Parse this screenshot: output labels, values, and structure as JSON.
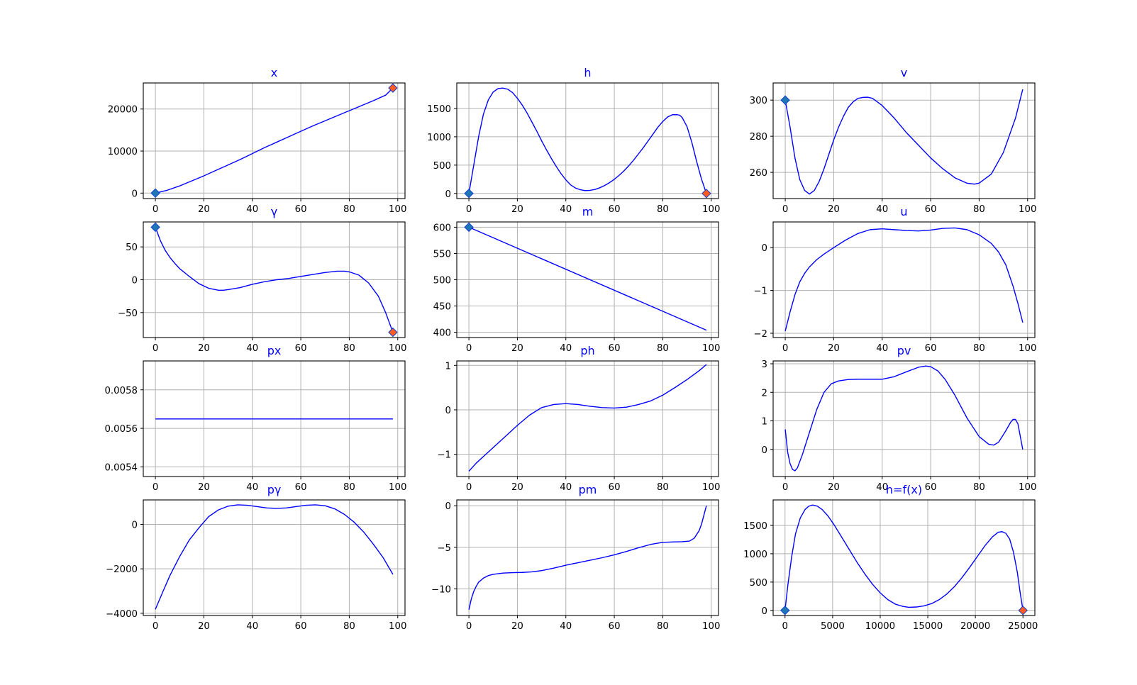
{
  "colors": {
    "line": "#0000ff",
    "title": "#0000ff",
    "grid": "#b0b0b0",
    "start_marker": "#1f77b4",
    "end_marker": "#ff5a1f",
    "marker_edge": "#0b3bd6"
  },
  "chart_data": [
    {
      "type": "line",
      "title": "x",
      "grid": true,
      "xlim": [
        -5,
        103
      ],
      "ylim": [
        -1300,
        26200
      ],
      "xticks": [
        0,
        20,
        40,
        60,
        80,
        100
      ],
      "xtick_labels": [
        "0",
        "20",
        "40",
        "60",
        "80",
        "100"
      ],
      "yticks": [
        0,
        10000,
        20000
      ],
      "ytick_labels": [
        "0",
        "10000",
        "20000"
      ],
      "x": [
        0,
        5,
        10,
        15,
        20,
        25,
        30,
        35,
        40,
        45,
        50,
        55,
        60,
        65,
        70,
        75,
        80,
        85,
        90,
        95,
        98
      ],
      "values": [
        0,
        700,
        1700,
        2900,
        4100,
        5400,
        6700,
        8000,
        9400,
        10800,
        12100,
        13400,
        14700,
        16000,
        17200,
        18400,
        19600,
        20800,
        22000,
        23300,
        25000
      ],
      "markers": [
        {
          "x": 0,
          "y": 0,
          "kind": "start"
        },
        {
          "x": 98,
          "y": 25000,
          "kind": "end"
        }
      ]
    },
    {
      "type": "line",
      "title": "h",
      "grid": true,
      "xlim": [
        -5,
        103
      ],
      "ylim": [
        -90,
        1950
      ],
      "xticks": [
        0,
        20,
        40,
        60,
        80,
        100
      ],
      "xtick_labels": [
        "0",
        "20",
        "40",
        "60",
        "80",
        "100"
      ],
      "yticks": [
        0,
        500,
        1000,
        1500
      ],
      "ytick_labels": [
        "0",
        "500",
        "1000",
        "1500"
      ],
      "x": [
        0,
        2,
        4,
        6,
        8,
        10,
        12,
        14,
        16,
        18,
        20,
        22,
        24,
        26,
        28,
        30,
        32,
        34,
        36,
        38,
        40,
        42,
        44,
        46,
        48,
        50,
        52,
        54,
        56,
        58,
        60,
        62,
        64,
        66,
        68,
        70,
        72,
        74,
        76,
        78,
        80,
        82,
        84,
        86,
        87,
        88,
        90,
        92,
        94,
        96,
        98
      ],
      "values": [
        0,
        500,
        1000,
        1400,
        1650,
        1790,
        1850,
        1860,
        1840,
        1780,
        1680,
        1560,
        1420,
        1260,
        1100,
        930,
        770,
        620,
        480,
        350,
        240,
        150,
        95,
        65,
        50,
        55,
        70,
        100,
        140,
        190,
        250,
        320,
        400,
        490,
        590,
        700,
        810,
        930,
        1050,
        1170,
        1270,
        1350,
        1390,
        1390,
        1380,
        1340,
        1180,
        900,
        560,
        250,
        0
      ],
      "markers": [
        {
          "x": 0,
          "y": 0,
          "kind": "start"
        },
        {
          "x": 98,
          "y": 0,
          "kind": "end"
        }
      ]
    },
    {
      "type": "line",
      "title": "v",
      "grid": true,
      "xlim": [
        -5,
        103
      ],
      "ylim": [
        245.5,
        309.5
      ],
      "xticks": [
        0,
        20,
        40,
        60,
        80,
        100
      ],
      "xtick_labels": [
        "0",
        "20",
        "40",
        "60",
        "80",
        "100"
      ],
      "yticks": [
        260,
        280,
        300
      ],
      "ytick_labels": [
        "260",
        "280",
        "300"
      ],
      "x": [
        0,
        2,
        4,
        6,
        8,
        10,
        12,
        14,
        16,
        18,
        20,
        22,
        24,
        26,
        28,
        30,
        32,
        34,
        36,
        38,
        40,
        45,
        50,
        55,
        60,
        65,
        70,
        75,
        78,
        80,
        85,
        90,
        95,
        98
      ],
      "values": [
        300,
        285,
        268,
        256,
        250,
        248,
        250,
        255,
        262,
        270,
        278,
        285,
        291,
        296,
        299,
        301,
        301.5,
        301.6,
        301,
        299,
        297,
        290,
        282,
        275,
        268,
        262,
        257,
        254,
        253.5,
        254,
        259,
        271,
        290,
        306
      ],
      "markers": [
        {
          "x": 0,
          "y": 300,
          "kind": "start"
        }
      ]
    },
    {
      "type": "line",
      "title": "γ",
      "grid": true,
      "xlim": [
        -5,
        103
      ],
      "ylim": [
        -88,
        88
      ],
      "xticks": [
        0,
        20,
        40,
        60,
        80,
        100
      ],
      "xtick_labels": [
        "0",
        "20",
        "40",
        "60",
        "80",
        "100"
      ],
      "yticks": [
        -50,
        0,
        50
      ],
      "ytick_labels": [
        "−50",
        "0",
        "50"
      ],
      "x": [
        0,
        2,
        4,
        6,
        8,
        10,
        14,
        18,
        22,
        26,
        28,
        30,
        35,
        40,
        45,
        50,
        55,
        60,
        65,
        70,
        75,
        78,
        80,
        84,
        88,
        92,
        95,
        98
      ],
      "values": [
        80,
        60,
        45,
        34,
        25,
        17,
        5,
        -6,
        -13,
        -16,
        -16,
        -15,
        -12,
        -7,
        -3,
        0,
        2,
        5,
        8,
        11,
        13,
        13,
        12,
        7,
        -5,
        -25,
        -50,
        -80
      ],
      "markers": [
        {
          "x": 0,
          "y": 80,
          "kind": "start"
        },
        {
          "x": 98,
          "y": -80,
          "kind": "end"
        }
      ]
    },
    {
      "type": "line",
      "title": "m",
      "grid": true,
      "xlim": [
        -5,
        103
      ],
      "ylim": [
        390,
        610
      ],
      "xticks": [
        0,
        20,
        40,
        60,
        80,
        100
      ],
      "xtick_labels": [
        "0",
        "20",
        "40",
        "60",
        "80",
        "100"
      ],
      "yticks": [
        400,
        450,
        500,
        550,
        600
      ],
      "ytick_labels": [
        "400",
        "450",
        "500",
        "550",
        "600"
      ],
      "x": [
        0,
        98
      ],
      "values": [
        600,
        404
      ],
      "markers": [
        {
          "x": 0,
          "y": 600,
          "kind": "start"
        }
      ]
    },
    {
      "type": "line",
      "title": "u",
      "grid": true,
      "xlim": [
        -5,
        103
      ],
      "ylim": [
        -2.1,
        0.6
      ],
      "xticks": [
        0,
        20,
        40,
        60,
        80,
        100
      ],
      "xtick_labels": [
        "0",
        "20",
        "40",
        "60",
        "80",
        "100"
      ],
      "yticks": [
        -2,
        -1,
        0
      ],
      "ytick_labels": [
        "−2",
        "−1",
        "0"
      ],
      "x": [
        0,
        2,
        4,
        6,
        8,
        10,
        13,
        16,
        20,
        25,
        30,
        35,
        40,
        45,
        50,
        55,
        60,
        65,
        70,
        75,
        80,
        85,
        88,
        91,
        94,
        96,
        98
      ],
      "values": [
        -1.95,
        -1.5,
        -1.1,
        -0.8,
        -0.6,
        -0.45,
        -0.28,
        -0.15,
        0,
        0.18,
        0.33,
        0.42,
        0.44,
        0.42,
        0.4,
        0.39,
        0.41,
        0.45,
        0.46,
        0.42,
        0.3,
        0.1,
        -0.1,
        -0.4,
        -0.9,
        -1.3,
        -1.75
      ],
      "markers": []
    },
    {
      "type": "line",
      "title": "px",
      "grid": true,
      "xlim": [
        -5,
        103
      ],
      "ylim": [
        0.00535,
        0.00595
      ],
      "xticks": [
        0,
        20,
        40,
        60,
        80,
        100
      ],
      "xtick_labels": [
        "0",
        "20",
        "40",
        "60",
        "80",
        "100"
      ],
      "yticks": [
        0.0054,
        0.0056,
        0.0058
      ],
      "ytick_labels": [
        "0.0054",
        "0.0056",
        "0.0058"
      ],
      "x": [
        0,
        98
      ],
      "values": [
        0.005649,
        0.005649
      ],
      "markers": []
    },
    {
      "type": "line",
      "title": "ph",
      "grid": true,
      "xlim": [
        -5,
        103
      ],
      "ylim": [
        -1.5,
        1.1
      ],
      "xticks": [
        0,
        20,
        40,
        60,
        80,
        100
      ],
      "xtick_labels": [
        "0",
        "20",
        "40",
        "60",
        "80",
        "100"
      ],
      "yticks": [
        -1,
        0,
        1
      ],
      "ytick_labels": [
        "−1",
        "0",
        "1"
      ],
      "x": [
        0,
        3,
        6,
        10,
        15,
        20,
        25,
        30,
        35,
        40,
        45,
        50,
        55,
        60,
        65,
        70,
        75,
        80,
        85,
        90,
        95,
        98
      ],
      "values": [
        -1.38,
        -1.2,
        -1.05,
        -0.85,
        -0.6,
        -0.35,
        -0.12,
        0.05,
        0.12,
        0.14,
        0.12,
        0.08,
        0.05,
        0.04,
        0.06,
        0.12,
        0.2,
        0.33,
        0.5,
        0.68,
        0.88,
        1.02
      ],
      "markers": []
    },
    {
      "type": "line",
      "title": "pv",
      "grid": true,
      "xlim": [
        -5,
        103
      ],
      "ylim": [
        -0.95,
        3.1
      ],
      "xticks": [
        0,
        20,
        40,
        60,
        80,
        100
      ],
      "xtick_labels": [
        "0",
        "20",
        "40",
        "60",
        "80",
        "100"
      ],
      "yticks": [
        0,
        1,
        2,
        3
      ],
      "ytick_labels": [
        "0",
        "1",
        "2",
        "3"
      ],
      "x": [
        0,
        1,
        2,
        3,
        4,
        5,
        7,
        10,
        13,
        16,
        19,
        22,
        26,
        30,
        35,
        40,
        45,
        50,
        55,
        58,
        60,
        63,
        66,
        70,
        75,
        80,
        84,
        86,
        88,
        91,
        93,
        94,
        95,
        96,
        97,
        98
      ],
      "values": [
        0.7,
        -0.1,
        -0.5,
        -0.7,
        -0.75,
        -0.65,
        -0.2,
        0.6,
        1.4,
        2.0,
        2.3,
        2.4,
        2.45,
        2.46,
        2.46,
        2.46,
        2.55,
        2.72,
        2.88,
        2.92,
        2.9,
        2.75,
        2.45,
        1.9,
        1.1,
        0.45,
        0.18,
        0.15,
        0.25,
        0.65,
        0.95,
        1.05,
        1.05,
        0.9,
        0.45,
        0.0
      ],
      "markers": []
    },
    {
      "type": "line",
      "title": "pγ",
      "grid": true,
      "xlim": [
        -5,
        103
      ],
      "ylim": [
        -4100,
        1100
      ],
      "xticks": [
        0,
        20,
        40,
        60,
        80,
        100
      ],
      "xtick_labels": [
        "0",
        "20",
        "40",
        "60",
        "80",
        "100"
      ],
      "yticks": [
        -4000,
        -2000,
        0
      ],
      "ytick_labels": [
        "−4000",
        "−2000",
        "0"
      ],
      "x": [
        0,
        3,
        6,
        10,
        14,
        18,
        22,
        26,
        30,
        34,
        38,
        42,
        46,
        50,
        54,
        58,
        62,
        66,
        70,
        74,
        78,
        82,
        86,
        90,
        94,
        98
      ],
      "values": [
        -3820,
        -3050,
        -2300,
        -1450,
        -700,
        -150,
        350,
        650,
        820,
        880,
        860,
        800,
        740,
        720,
        740,
        800,
        860,
        880,
        840,
        700,
        450,
        100,
        -350,
        -900,
        -1500,
        -2250
      ],
      "markers": []
    },
    {
      "type": "line",
      "title": "pm",
      "grid": true,
      "xlim": [
        -5,
        103
      ],
      "ylim": [
        -13.2,
        0.7
      ],
      "xticks": [
        0,
        20,
        40,
        60,
        80,
        100
      ],
      "xtick_labels": [
        "0",
        "20",
        "40",
        "60",
        "80",
        "100"
      ],
      "yticks": [
        -10,
        -5,
        0
      ],
      "ytick_labels": [
        "−10",
        "−5",
        "0"
      ],
      "x": [
        0,
        1,
        2,
        3,
        4,
        6,
        8,
        10,
        14,
        18,
        22,
        26,
        30,
        35,
        40,
        45,
        50,
        55,
        60,
        65,
        70,
        75,
        80,
        85,
        88,
        91,
        93,
        95,
        96,
        97,
        98
      ],
      "values": [
        -12.5,
        -11.2,
        -10.3,
        -9.7,
        -9.2,
        -8.7,
        -8.4,
        -8.25,
        -8.1,
        -8.05,
        -8.02,
        -7.95,
        -7.8,
        -7.5,
        -7.15,
        -6.85,
        -6.55,
        -6.25,
        -5.9,
        -5.5,
        -5.05,
        -4.65,
        -4.4,
        -4.35,
        -4.33,
        -4.25,
        -3.9,
        -3.0,
        -2.2,
        -1.1,
        0
      ],
      "markers": []
    },
    {
      "type": "line",
      "title": "h=f(x)",
      "grid": true,
      "xlim": [
        -1250,
        26250
      ],
      "ylim": [
        -90,
        1950
      ],
      "xticks": [
        0,
        5000,
        10000,
        15000,
        20000,
        25000
      ],
      "xtick_labels": [
        "0",
        "5000",
        "10000",
        "15000",
        "20000",
        "25000"
      ],
      "yticks": [
        0,
        500,
        1000,
        1500
      ],
      "ytick_labels": [
        "0",
        "500",
        "1000",
        "1500"
      ],
      "x": [
        0,
        300,
        700,
        1100,
        1600,
        2100,
        2500,
        2900,
        3400,
        3900,
        4500,
        5200,
        6000,
        6800,
        7600,
        8400,
        9200,
        10000,
        10800,
        11600,
        12400,
        13000,
        13800,
        14600,
        15400,
        16200,
        17000,
        17800,
        18600,
        19400,
        20200,
        21000,
        21800,
        22400,
        22800,
        23200,
        23600,
        24000,
        24400,
        24700,
        25000
      ],
      "values": [
        0,
        450,
        950,
        1350,
        1630,
        1780,
        1840,
        1860,
        1840,
        1780,
        1670,
        1500,
        1280,
        1060,
        840,
        640,
        460,
        310,
        190,
        110,
        70,
        55,
        60,
        80,
        120,
        190,
        290,
        420,
        580,
        760,
        950,
        1140,
        1300,
        1380,
        1390,
        1360,
        1260,
        1030,
        680,
        320,
        0
      ],
      "markers": [
        {
          "x": 0,
          "y": 0,
          "kind": "start"
        },
        {
          "x": 25000,
          "y": 0,
          "kind": "end"
        }
      ]
    }
  ]
}
